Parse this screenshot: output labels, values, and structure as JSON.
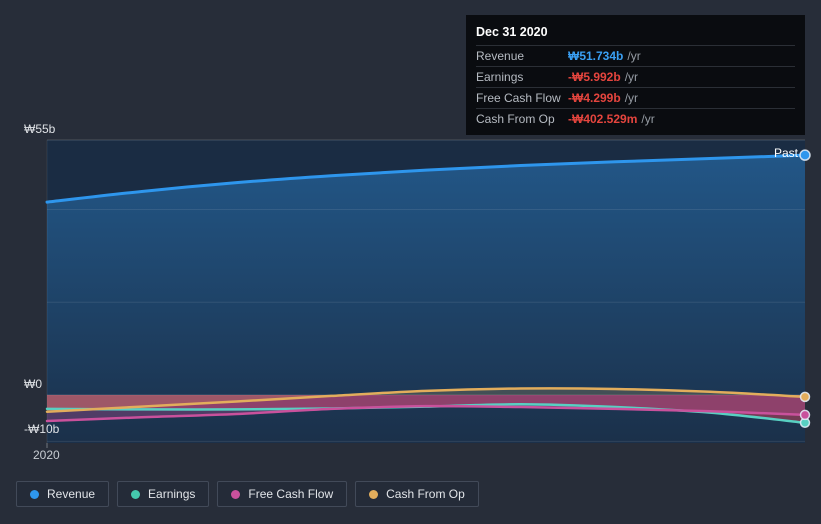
{
  "tooltip": {
    "date": "Dec 31 2020",
    "rows": [
      {
        "label": "Revenue",
        "value": "₩51.734b",
        "unit": "/yr",
        "color": "#3aa0f4"
      },
      {
        "label": "Earnings",
        "value": "-₩5.992b",
        "unit": "/yr",
        "color": "#e5453e"
      },
      {
        "label": "Free Cash Flow",
        "value": "-₩4.299b",
        "unit": "/yr",
        "color": "#e5453e"
      },
      {
        "label": "Cash From Op",
        "value": "-₩402.529m",
        "unit": "/yr",
        "color": "#e5453e"
      }
    ]
  },
  "axis": {
    "y_top": "₩55b",
    "y_zero": "₩0",
    "y_bottom": "-₩10b",
    "x_start": "2020"
  },
  "past_label": "Past",
  "legend": [
    {
      "label": "Revenue",
      "color": "#2e96ed"
    },
    {
      "label": "Earnings",
      "color": "#45c9ae"
    },
    {
      "label": "Free Cash Flow",
      "color": "#c9519c"
    },
    {
      "label": "Cash From Op",
      "color": "#e2ad5c"
    }
  ],
  "chart_data": {
    "type": "area",
    "title": "Company past financial performance (KRW billions)",
    "x_axis_label": "2020",
    "x": [
      0,
      0.125,
      0.25,
      0.375,
      0.5,
      0.625,
      0.75,
      0.875,
      1
    ],
    "x_note": "fraction of visible period; left tick = 2020, right edge = Dec 31 2020",
    "series": [
      {
        "name": "Revenue",
        "color": "#2e96ed",
        "values": [
          41.6,
          43.9,
          45.8,
          47.3,
          48.5,
          49.5,
          50.3,
          51.0,
          51.734
        ],
        "final_label": "₩51.734b/yr"
      },
      {
        "name": "Earnings",
        "color": "#58d0c2",
        "values": [
          -3.0,
          -3.1,
          -3.1,
          -2.9,
          -2.5,
          -2.0,
          -2.6,
          -3.8,
          -5.992
        ],
        "final_label": "-₩5.992b/yr"
      },
      {
        "name": "Free Cash Flow",
        "color": "#c9519c",
        "values": [
          -5.6,
          -4.8,
          -4.1,
          -3.0,
          -2.4,
          -2.6,
          -3.0,
          -3.5,
          -4.299
        ],
        "final_label": "-₩4.299b/yr"
      },
      {
        "name": "Cash From Op",
        "color": "#e2ad5c",
        "values": [
          -3.6,
          -2.5,
          -1.4,
          -0.2,
          0.9,
          1.4,
          1.3,
          0.7,
          -0.403
        ],
        "final_label": "-₩402.529m/yr"
      }
    ],
    "ymax": 55,
    "ylim": [
      -10.35,
      55
    ],
    "gridline_values": [
      55,
      40,
      20,
      0,
      -10
    ],
    "grid": true,
    "legend_position": "bottom",
    "fills": {
      "revenue_gradient_top": "rgba(46,150,237,0.40)",
      "revenue_gradient_bottom": "rgba(46,150,237,0.04)",
      "earnings_fill": "rgba(224,69,94,0.45)",
      "fcf_fill": "rgba(201,81,156,0.30)",
      "cashop_fill": "rgba(227,174,91,0.20)"
    },
    "plot_bg": "#1a2c43"
  }
}
